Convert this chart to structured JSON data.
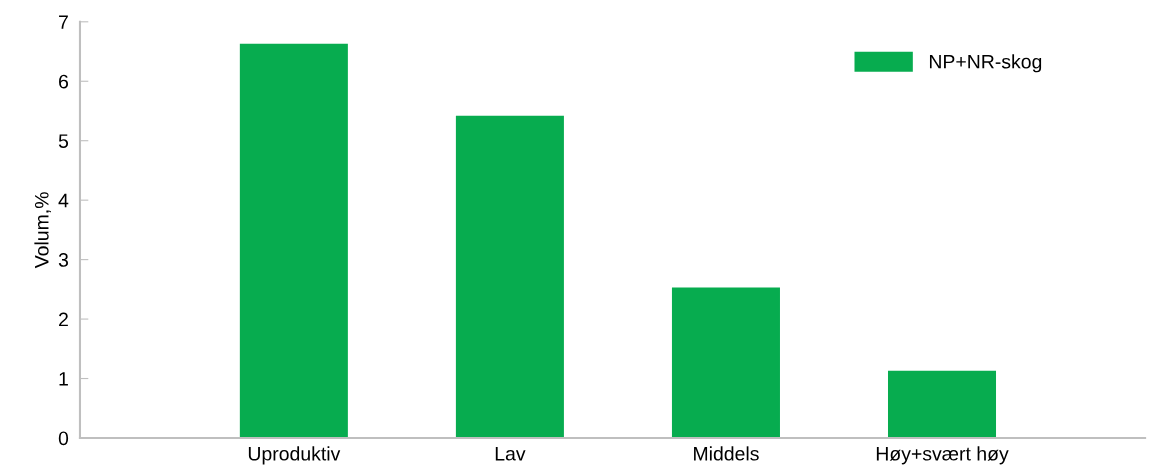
{
  "chart_data": {
    "type": "bar",
    "ylabel": "Volum,%",
    "categories": [
      "Uproduktiv",
      "Lav",
      "Middels",
      "Høy+svært høy"
    ],
    "series": [
      {
        "name": "NP+NR-skog",
        "color": "#07ac4f",
        "values": [
          6.63,
          5.42,
          2.53,
          1.13
        ]
      }
    ],
    "ylim": [
      0,
      7
    ],
    "yticks": [
      0,
      1,
      2,
      3,
      4,
      5,
      6,
      7
    ],
    "grid": false,
    "legend": "top right"
  }
}
